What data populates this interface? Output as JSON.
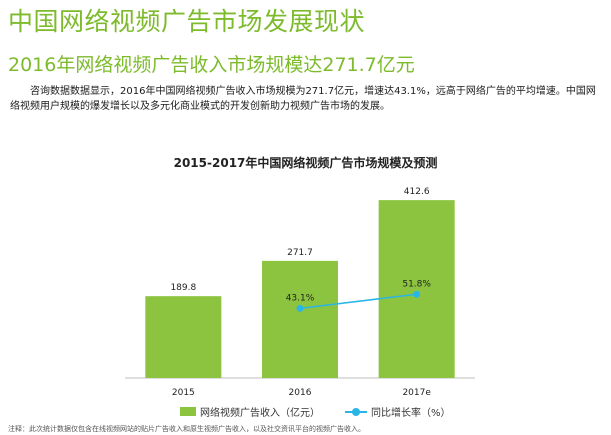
{
  "header": {
    "title": "中国网络视频广告市场发展现状",
    "subtitle": "2016年网络视频广告收入市场规模达271.7亿元"
  },
  "body_text": "咨询数据数据显示，2016年中国网络视频广告收入市场规模为271.7亿元，增速达43.1%，远高于网络广告的平均增速。中国网络视频用户规模的爆发增长以及多元化商业模式的开发创新助力视频广告市场的发展。",
  "footnote": "注释：此次统计数据仅包含在线视频网站的贴片广告收入和原生视频广告收入，以及社交资讯平台的视频广告收入。",
  "chart_data": {
    "type": "bar",
    "title": "2015-2017年中国网络视频广告市场规模及预测",
    "categories": [
      "2015",
      "2016",
      "2017e"
    ],
    "series": [
      {
        "name": "网络视频广告收入（亿元）",
        "type": "bar",
        "values": [
          189.8,
          271.7,
          412.6
        ],
        "labels": [
          "189.8",
          "271.7",
          "412.6"
        ],
        "color": "#8cc43f"
      },
      {
        "name": "同比增长率（%）",
        "type": "line",
        "values": [
          null,
          43.1,
          51.8
        ],
        "labels": [
          "",
          "43.1%",
          "51.8%"
        ],
        "color": "#29b6e6"
      }
    ],
    "ylim": [
      0,
      450
    ],
    "y2lim": [
      0,
      120
    ],
    "grid": false,
    "legend": "bottom"
  }
}
